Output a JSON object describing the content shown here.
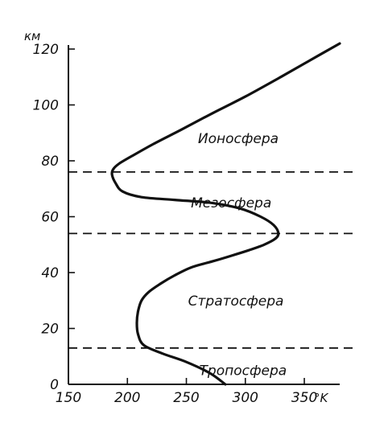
{
  "chart_data": {
    "type": "line",
    "xlabel": "°K",
    "ylabel": "км",
    "xlim": [
      150,
      380
    ],
    "ylim": [
      0,
      120
    ],
    "x_ticks": [
      150,
      200,
      250,
      300,
      350
    ],
    "y_ticks": [
      0,
      20,
      40,
      60,
      80,
      100,
      120
    ],
    "x_tick_labels": [
      "150",
      "200",
      "250",
      "300",
      "350"
    ],
    "y_tick_labels": [
      "0",
      "20",
      "40",
      "60",
      "80",
      "100",
      "120"
    ],
    "grid": false,
    "series": [
      {
        "x": [
          283,
          270,
          250,
          230,
          214,
          209,
          208,
          209,
          212,
          218,
          228,
          240,
          255,
          272,
          288,
          303,
          316,
          325,
          328,
          324,
          313,
          295,
          270,
          240,
          212,
          196,
          190,
          187,
          188,
          193,
          205,
          222,
          245,
          272,
          300,
          330,
          355,
          380
        ],
        "y": [
          0,
          4,
          8,
          11,
          14,
          18,
          22,
          26,
          30,
          33,
          36,
          39,
          42,
          44,
          46,
          48,
          50,
          52,
          54,
          57,
          60,
          63,
          65,
          66,
          67,
          69,
          72,
          75,
          77,
          79,
          82,
          86,
          91,
          97,
          103,
          110,
          116,
          122
        ]
      }
    ],
    "boundaries": [
      {
        "y": 13
      },
      {
        "y": 54
      },
      {
        "y": 76
      }
    ],
    "annotations": [
      {
        "text": "Тропосфера",
        "x": 298,
        "y": 5
      },
      {
        "text": "Стратосфера",
        "x": 292,
        "y": 30
      },
      {
        "text": "Мезосфера",
        "x": 288,
        "y": 65
      },
      {
        "text": "Ионосфера",
        "x": 294,
        "y": 88
      }
    ]
  }
}
